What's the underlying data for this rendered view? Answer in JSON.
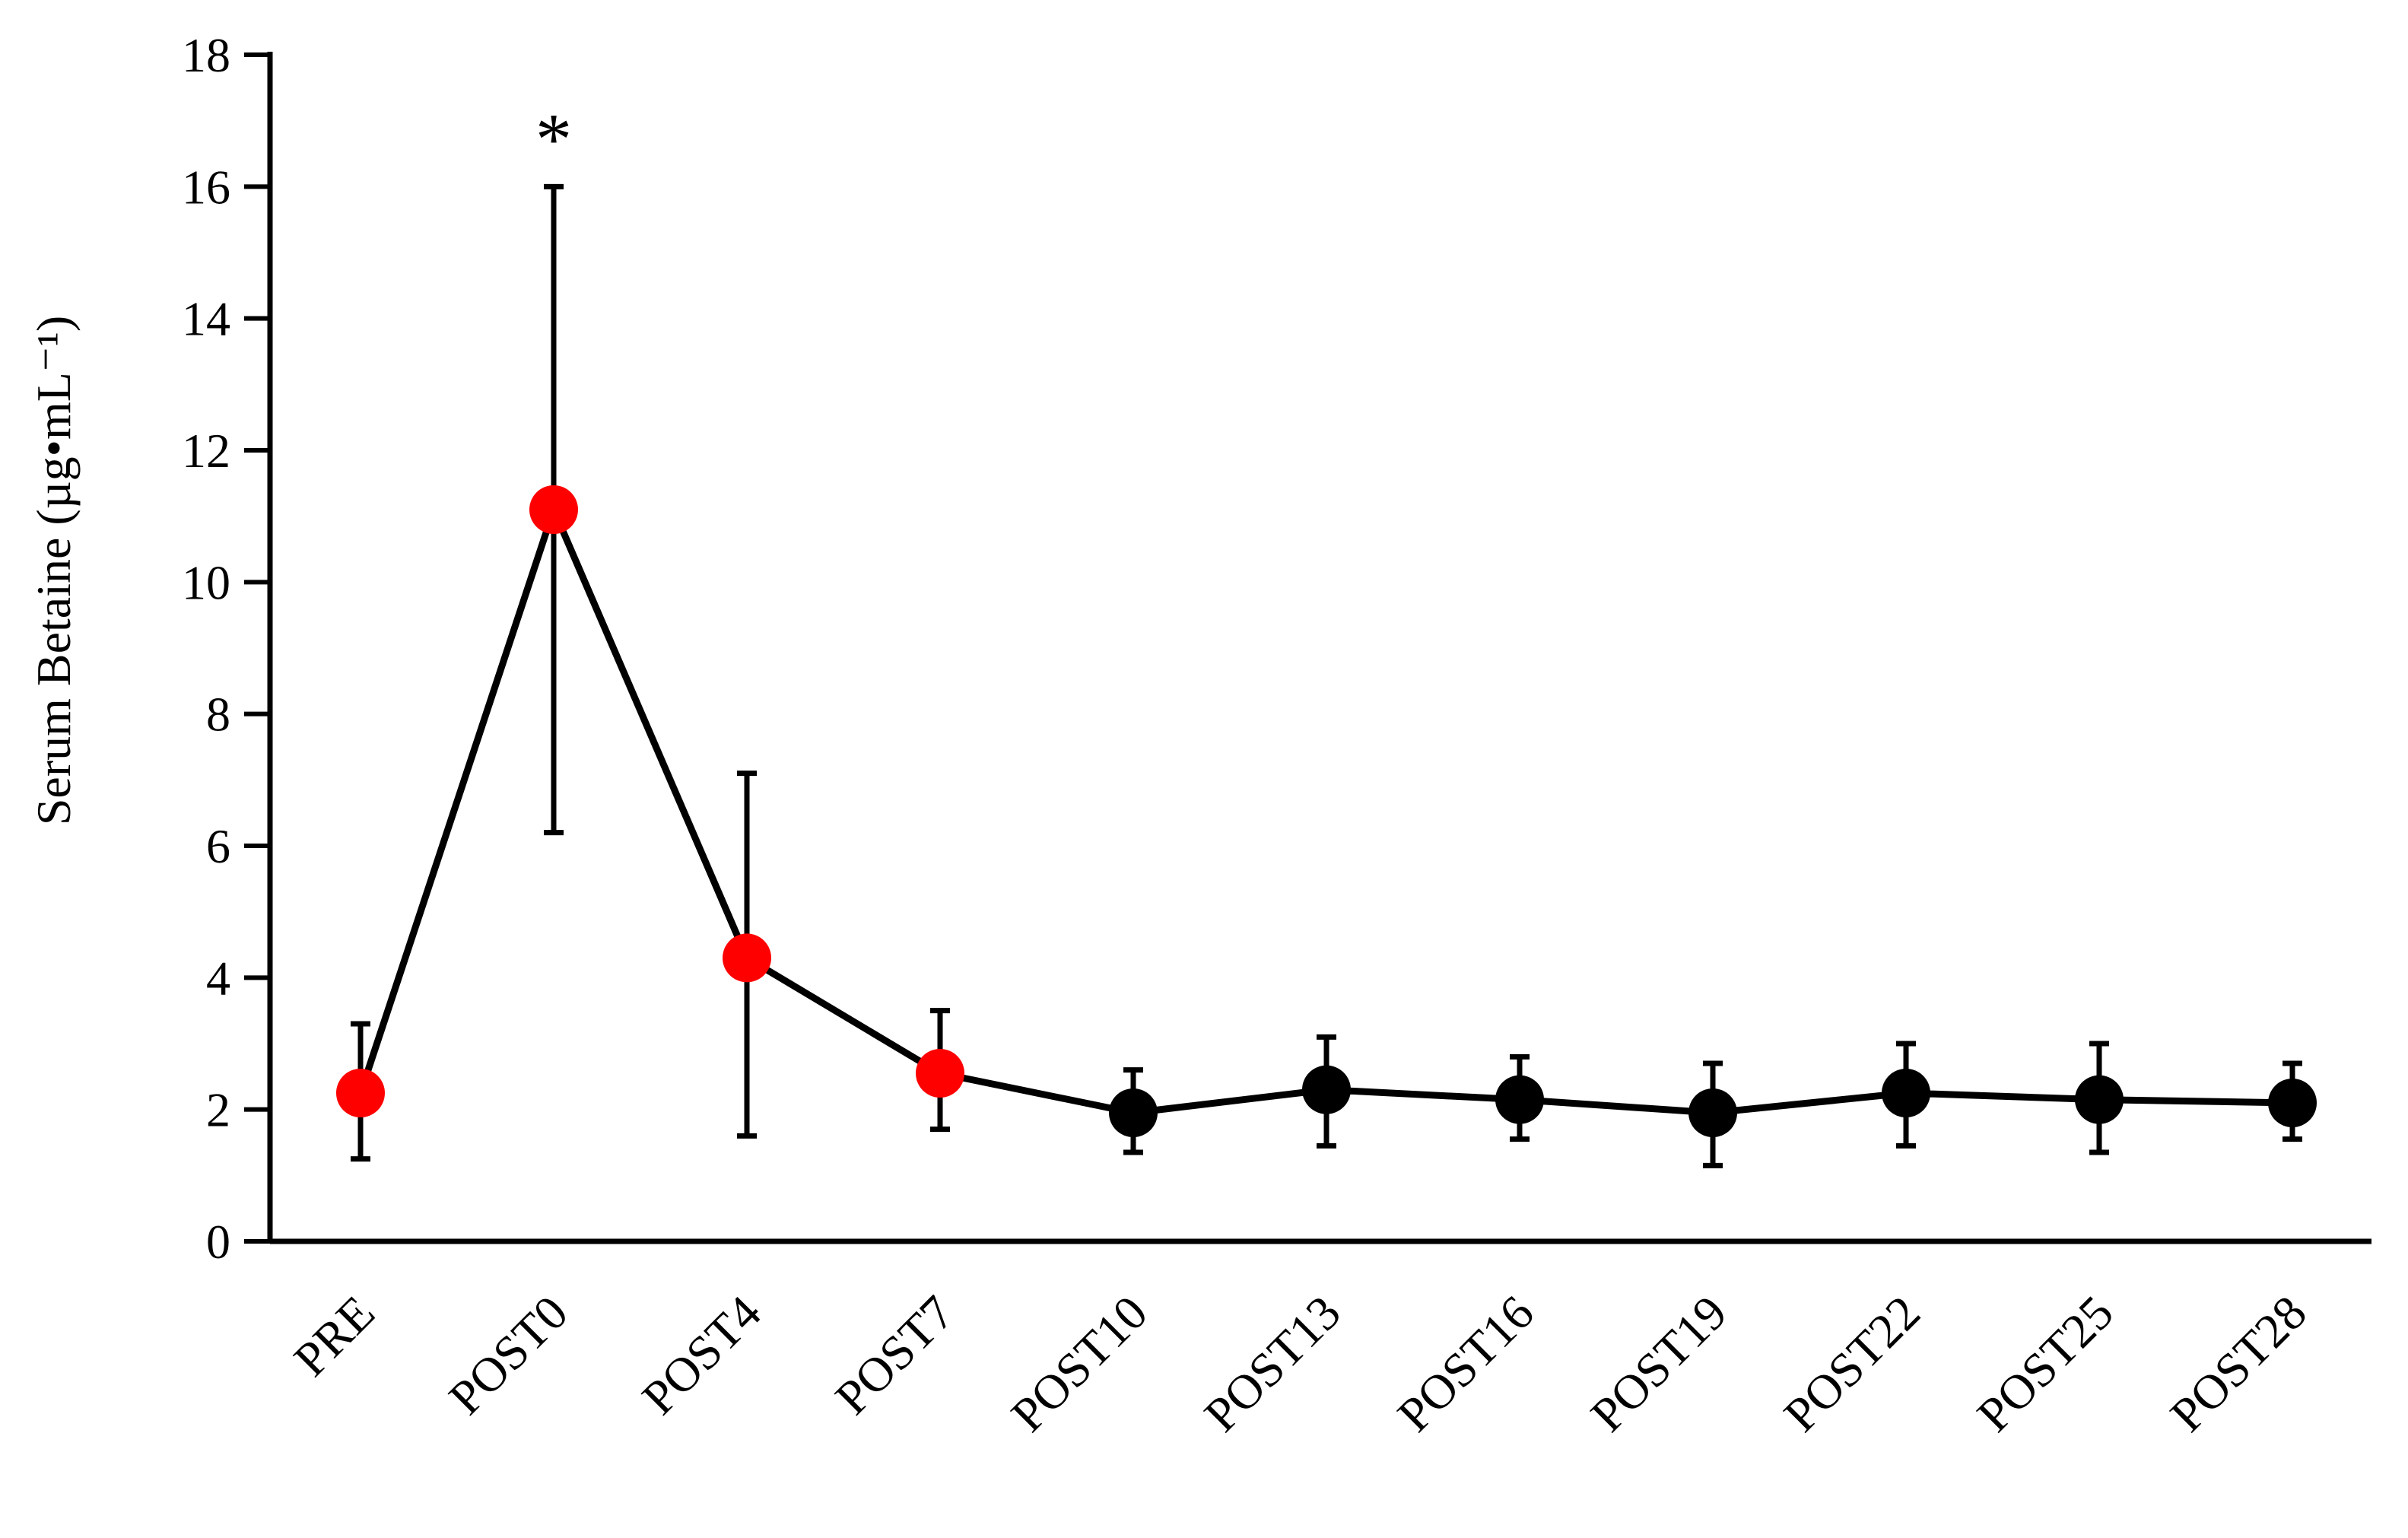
{
  "chart_data": {
    "type": "line",
    "title": "",
    "xlabel": "",
    "ylabel": "Serum Betaine (µg•mL⁻¹)",
    "ylim": [
      0,
      18
    ],
    "yticks": [
      0,
      2,
      4,
      6,
      8,
      10,
      12,
      14,
      16,
      18
    ],
    "grid": false,
    "legend": "none",
    "categories": [
      "PRE",
      "POST0",
      "POST4",
      "POST7",
      "POST10",
      "POST13",
      "POST16",
      "POST19",
      "POST22",
      "POST25",
      "POST28"
    ],
    "series": [
      {
        "values": [
          2.25,
          11.1,
          4.3,
          2.55,
          1.95,
          2.3,
          2.15,
          1.95,
          2.25,
          2.15,
          2.1
        ],
        "error_upper": [
          3.3,
          16.0,
          7.1,
          3.5,
          2.6,
          3.1,
          2.8,
          2.7,
          3.0,
          3.0,
          2.7
        ],
        "error_lower": [
          1.25,
          6.2,
          1.6,
          1.7,
          1.35,
          1.45,
          1.55,
          1.15,
          1.45,
          1.35,
          1.55
        ],
        "marker_colors": [
          "#ff0000",
          "#ff0000",
          "#ff0000",
          "#ff0000",
          "#000000",
          "#000000",
          "#000000",
          "#000000",
          "#000000",
          "#000000",
          "#000000"
        ]
      }
    ],
    "annotations": [
      {
        "text": "*",
        "category": "POST0",
        "y": 16.9
      }
    ],
    "colors": {
      "line": "#000000",
      "highlight_marker": "#ff0000",
      "marker": "#000000",
      "axis": "#000000"
    }
  }
}
